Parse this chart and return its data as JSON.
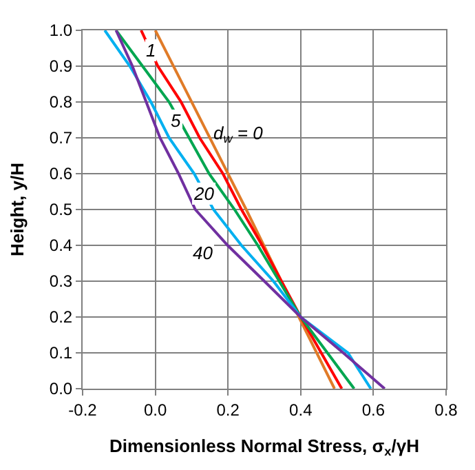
{
  "chart_data": {
    "type": "line",
    "xlabel": "Dimensionless Normal Stress, σ$_{x}$/γH",
    "ylabel": "Height, y/H",
    "series": [
      {
        "color": "#e07b28",
        "x": [
          0.0,
          0.25,
          0.395,
          0.493
        ],
        "values": [
          1.0,
          0.5,
          0.2,
          0.0
        ]
      },
      {
        "color": "#ff0000",
        "x": [
          -0.039,
          0.007,
          0.071,
          0.122,
          0.186,
          0.237,
          0.294,
          0.4,
          0.513
        ],
        "values": [
          1.0,
          0.9,
          0.8,
          0.7,
          0.6,
          0.5,
          0.4,
          0.2,
          0.0
        ]
      },
      {
        "color": "#00a650",
        "x": [
          -0.108,
          0.038,
          0.148,
          0.218,
          0.282,
          0.4,
          0.547
        ],
        "values": [
          1.0,
          0.8,
          0.6,
          0.5,
          0.4,
          0.2,
          0.0
        ]
      },
      {
        "color": "#00b0f0",
        "x": [
          -0.139,
          -0.07,
          -0.012,
          0.038,
          0.107,
          0.16,
          0.237,
          0.325,
          0.4,
          0.53,
          0.593
        ],
        "values": [
          1.0,
          0.9,
          0.8,
          0.7,
          0.6,
          0.5,
          0.4,
          0.3,
          0.2,
          0.1,
          0.0
        ]
      },
      {
        "color": "#7030a0",
        "x": [
          -0.108,
          -0.063,
          -0.025,
          0.013,
          0.064,
          0.11,
          0.199,
          0.3,
          0.4,
          0.517,
          0.631
        ],
        "values": [
          1.0,
          0.9,
          0.8,
          0.7,
          0.6,
          0.5,
          0.4,
          0.3,
          0.2,
          0.1,
          0.0
        ]
      }
    ],
    "annotations": [
      "d$_{w}$ = 0",
      {
        "text": "1",
        "x": -0.012,
        "y": 0.946
      },
      {
        "text": "5",
        "x": 0.057,
        "y": 0.75
      },
      {
        "text": "20",
        "x": 0.133,
        "y": 0.546
      },
      {
        "text": "40",
        "x": 0.133,
        "y": 0.378
      }
    ],
    "xlim": [
      -0.2,
      0.8
    ],
    "xticks": [
      -0.2,
      {
        "value": 0,
        "label": "0.0"
      },
      0.2,
      0.4,
      0.6,
      0.8
    ],
    "ylim": [
      0,
      1
    ],
    "yticks": [
      {
        "value": 0,
        "label": "0.0"
      },
      0.1,
      0.2,
      0.3,
      0.4,
      0.5,
      0.6,
      0.7,
      0.8,
      0.9,
      {
        "value": 1,
        "label": "1.0"
      }
    ],
    "grid": true,
    "line_style": "solid"
  }
}
